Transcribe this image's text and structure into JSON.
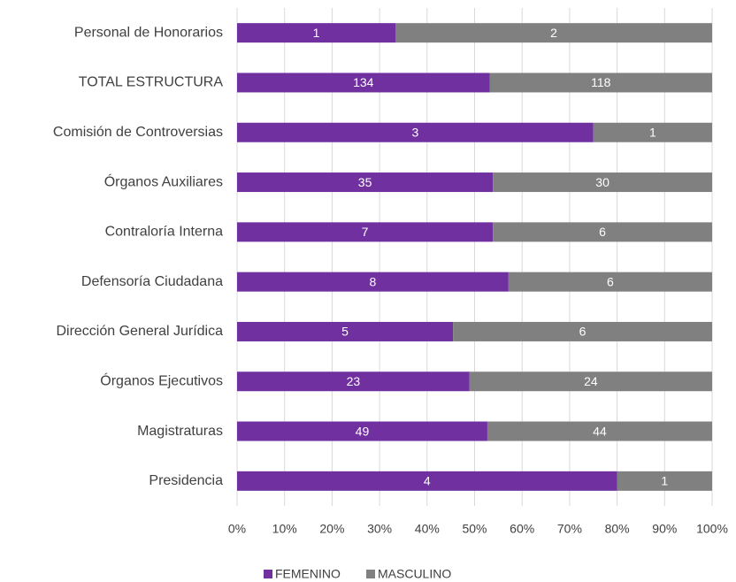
{
  "chart_data": {
    "type": "bar",
    "orientation": "horizontal",
    "stacking": "percent",
    "categories": [
      "Personal de Honorarios",
      "TOTAL ESTRUCTURA",
      "Comisión de Controversias",
      "Órganos Auxiliares",
      "Contraloría Interna",
      "Defensoría Ciudadana",
      "Dirección General Jurídica",
      "Órganos Ejecutivos",
      "Magistraturas",
      "Presidencia"
    ],
    "series": [
      {
        "name": "FEMENINO",
        "color": "#7030a0",
        "values": [
          1,
          134,
          3,
          35,
          7,
          8,
          5,
          23,
          49,
          4
        ]
      },
      {
        "name": "MASCULINO",
        "color": "#808080",
        "values": [
          2,
          118,
          1,
          30,
          6,
          6,
          6,
          24,
          44,
          1
        ]
      }
    ],
    "xlim": [
      0,
      100
    ],
    "xticks": [
      {
        "value": 0,
        "label": "0%"
      },
      {
        "value": 10,
        "label": "10%"
      },
      {
        "value": 20,
        "label": "20%"
      },
      {
        "value": 30,
        "label": "30%"
      },
      {
        "value": 40,
        "label": "40%"
      },
      {
        "value": 50,
        "label": "50%"
      },
      {
        "value": 60,
        "label": "60%"
      },
      {
        "value": 70,
        "label": "70%"
      },
      {
        "value": 80,
        "label": "80%"
      },
      {
        "value": 90,
        "label": "90%"
      },
      {
        "value": 100,
        "label": "100%"
      }
    ],
    "grid": true,
    "legend": "bottom"
  }
}
